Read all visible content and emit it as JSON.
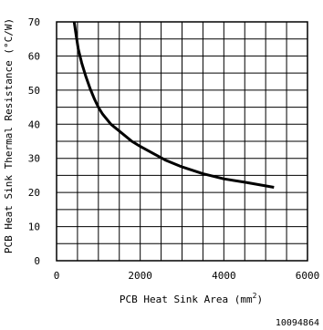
{
  "chart_data": {
    "type": "line",
    "xlabel": "PCB Heat Sink Area (mm",
    "xlabel_superscript": "2",
    "xlabel_suffix": ")",
    "ylabel": "PCB Heat Sink Thermal Resistance (°C/W)",
    "xlim": [
      0,
      6000
    ],
    "ylim": [
      0,
      70
    ],
    "x_ticks": [
      0,
      2000,
      4000,
      6000
    ],
    "y_ticks": [
      0,
      10,
      20,
      30,
      40,
      50,
      60,
      70
    ],
    "x_grid_step": 500,
    "y_grid_step": 5,
    "grid": true,
    "series": [
      {
        "x": [
          420,
          470,
          520,
          600,
          700,
          800,
          900,
          1000,
          1100,
          1300,
          1500,
          1800,
          2000,
          2300,
          2600,
          3000,
          3500,
          4000,
          4500,
          5200
        ],
        "y": [
          70,
          66,
          62,
          58,
          54,
          50.5,
          47.5,
          45,
          43,
          40,
          38,
          35,
          33.5,
          31.5,
          29.5,
          27.5,
          25.5,
          24,
          23,
          21.5
        ]
      }
    ]
  },
  "figure_id": "10094864"
}
